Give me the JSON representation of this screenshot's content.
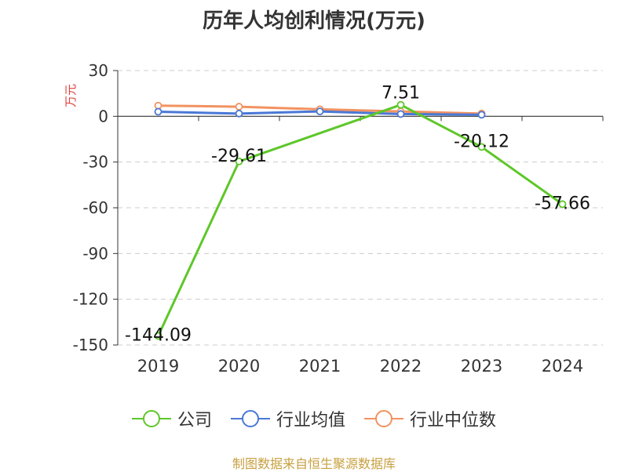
{
  "chart_data": {
    "type": "line",
    "title": "历年人均创利情况(万元)",
    "ylabel": "万元",
    "xlabel": "",
    "categories": [
      "2019",
      "2020",
      "2021",
      "2022",
      "2023",
      "2024"
    ],
    "ylim": [
      -150,
      30
    ],
    "yticks": [
      30,
      0,
      -30,
      -60,
      -90,
      -120,
      -150
    ],
    "grid": true,
    "legend_position": "bottom",
    "series": [
      {
        "name": "公司",
        "color": "#5ec72a",
        "values": [
          -144.09,
          -29.61,
          null,
          7.51,
          -20.12,
          -57.66
        ],
        "labels": [
          "-144.09",
          "-29.61",
          "",
          "7.51",
          "-20.12",
          "-57.66"
        ]
      },
      {
        "name": "行业均值",
        "color": "#4a78d6",
        "values": [
          3.0,
          1.8,
          3.2,
          1.5,
          1.0,
          null
        ]
      },
      {
        "name": "行业中位数",
        "color": "#f29260",
        "values": [
          7.0,
          6.3,
          4.6,
          3.2,
          1.8,
          null
        ]
      }
    ]
  },
  "footer": {
    "source": "制图数据来自恒生聚源数据库"
  }
}
